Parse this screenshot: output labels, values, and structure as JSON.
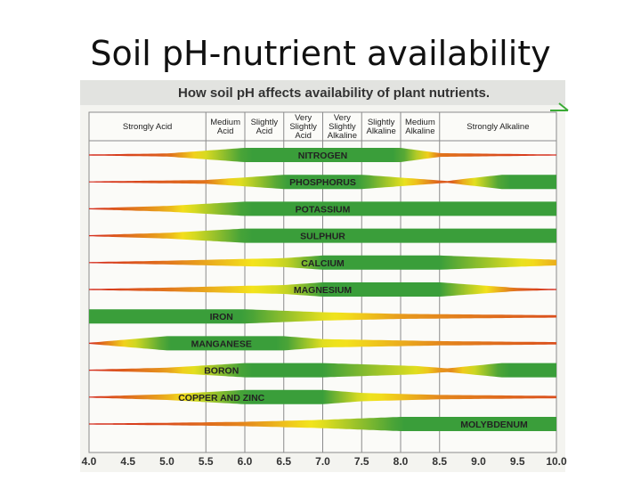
{
  "slide": {
    "title": "Soil pH-nutrient availability"
  },
  "chart_data": {
    "type": "band-chart",
    "title": "How soil pH affects availability of plant nutrients.",
    "x_range": [
      4.0,
      10.0
    ],
    "x_ticks": [
      "4.0",
      "4.5",
      "5.0",
      "5.5",
      "6.0",
      "6.5",
      "7.0",
      "7.5",
      "8.0",
      "8.5",
      "9.0",
      "9.5",
      "10.0"
    ],
    "categories": [
      {
        "label": "Strongly Acid",
        "from": 4.0,
        "to": 5.5
      },
      {
        "label": "Medium Acid",
        "from": 5.5,
        "to": 6.0
      },
      {
        "label": "Slightly Acid",
        "from": 6.0,
        "to": 6.5
      },
      {
        "label": "Very Slightly Acid",
        "from": 6.5,
        "to": 7.0
      },
      {
        "label": "Very Slightly Alkaline",
        "from": 7.0,
        "to": 7.5
      },
      {
        "label": "Slightly Alkaline",
        "from": 7.5,
        "to": 8.0
      },
      {
        "label": "Medium Alkaline",
        "from": 8.0,
        "to": 8.5
      },
      {
        "label": "Strongly Alkaline",
        "from": 8.5,
        "to": 10.0
      }
    ],
    "nutrients": [
      {
        "name": "NITROGEN",
        "label_at": 7.0,
        "points": [
          [
            4.0,
            0.0
          ],
          [
            5.0,
            0.15
          ],
          [
            6.0,
            1.0
          ],
          [
            8.0,
            1.0
          ],
          [
            8.5,
            0.2
          ],
          [
            10.0,
            0.0
          ]
        ]
      },
      {
        "name": "PHOSPHORUS",
        "label_at": 7.0,
        "points": [
          [
            4.0,
            0.0
          ],
          [
            5.5,
            0.2
          ],
          [
            6.0,
            0.6
          ],
          [
            6.5,
            1.0
          ],
          [
            7.5,
            1.0
          ],
          [
            8.2,
            0.4
          ],
          [
            8.6,
            0.05
          ],
          [
            8.8,
            0.35
          ],
          [
            9.3,
            1.0
          ],
          [
            10.0,
            1.0
          ]
        ]
      },
      {
        "name": "POTASSIUM",
        "label_at": 7.0,
        "points": [
          [
            4.0,
            0.0
          ],
          [
            5.0,
            0.35
          ],
          [
            6.0,
            1.0
          ],
          [
            10.0,
            1.0
          ]
        ]
      },
      {
        "name": "SULPHUR",
        "label_at": 7.0,
        "points": [
          [
            4.0,
            0.0
          ],
          [
            5.0,
            0.35
          ],
          [
            6.0,
            1.0
          ],
          [
            10.0,
            1.0
          ]
        ]
      },
      {
        "name": "CALCIUM",
        "label_at": 7.0,
        "points": [
          [
            4.0,
            0.0
          ],
          [
            5.0,
            0.2
          ],
          [
            6.5,
            0.6
          ],
          [
            7.0,
            1.0
          ],
          [
            8.5,
            1.0
          ],
          [
            9.5,
            0.55
          ],
          [
            10.0,
            0.35
          ]
        ]
      },
      {
        "name": "MAGNESIUM",
        "label_at": 7.0,
        "points": [
          [
            4.0,
            0.0
          ],
          [
            5.0,
            0.2
          ],
          [
            6.5,
            0.6
          ],
          [
            7.0,
            1.0
          ],
          [
            8.5,
            1.0
          ],
          [
            9.5,
            0.15
          ],
          [
            10.0,
            0.0
          ]
        ]
      },
      {
        "name": "IRON",
        "label_at": 5.7,
        "points": [
          [
            4.0,
            1.0
          ],
          [
            6.0,
            1.0
          ],
          [
            7.0,
            0.55
          ],
          [
            8.0,
            0.3
          ],
          [
            10.0,
            0.1
          ]
        ]
      },
      {
        "name": "MANGANESE",
        "label_at": 5.7,
        "points": [
          [
            4.0,
            0.0
          ],
          [
            5.0,
            1.0
          ],
          [
            6.5,
            1.0
          ],
          [
            7.0,
            0.55
          ],
          [
            8.5,
            0.25
          ],
          [
            10.0,
            0.1
          ]
        ]
      },
      {
        "name": "BORON",
        "label_at": 5.7,
        "points": [
          [
            4.0,
            0.0
          ],
          [
            5.0,
            0.3
          ],
          [
            6.0,
            1.0
          ],
          [
            7.0,
            1.0
          ],
          [
            8.2,
            0.55
          ],
          [
            8.6,
            0.2
          ],
          [
            8.9,
            0.55
          ],
          [
            9.3,
            1.0
          ],
          [
            10.0,
            1.0
          ]
        ]
      },
      {
        "name": "COPPER AND ZINC",
        "label_at": 5.7,
        "points": [
          [
            4.0,
            0.0
          ],
          [
            5.0,
            0.35
          ],
          [
            6.0,
            1.0
          ],
          [
            7.0,
            1.0
          ],
          [
            7.5,
            0.55
          ],
          [
            8.5,
            0.25
          ],
          [
            10.0,
            0.1
          ]
        ]
      },
      {
        "name": "MOLYBDENUM",
        "label_at": 9.2,
        "points": [
          [
            4.0,
            0.0
          ],
          [
            5.0,
            0.1
          ],
          [
            6.0,
            0.25
          ],
          [
            7.0,
            0.55
          ],
          [
            8.0,
            1.0
          ],
          [
            10.0,
            1.0
          ]
        ]
      }
    ],
    "colors": {
      "low": "#d42a1e",
      "mid": "#f4e51c",
      "high": "#3a9e3a"
    }
  }
}
